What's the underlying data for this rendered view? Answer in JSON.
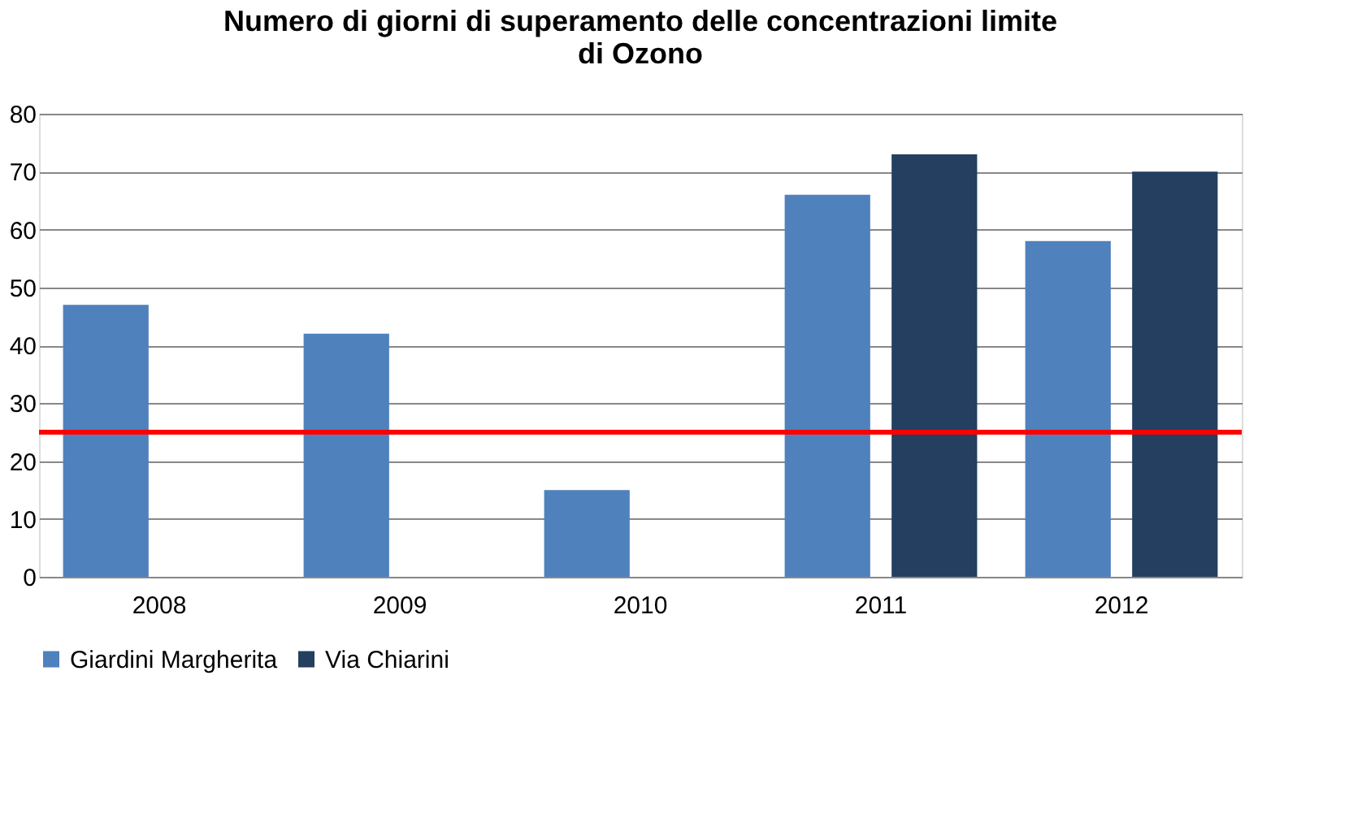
{
  "chart_data": {
    "type": "bar",
    "title": "Numero di giorni di superamento delle concentrazioni limite di Ozono",
    "categories": [
      "2008",
      "2009",
      "2010",
      "2011",
      "2012"
    ],
    "series": [
      {
        "name": "Giardini Margherita",
        "color": "#4f81bd",
        "values": [
          47,
          42,
          15,
          66,
          58
        ]
      },
      {
        "name": "Via Chiarini",
        "color": "#243f60",
        "values": [
          null,
          null,
          null,
          73,
          70
        ]
      }
    ],
    "ylim": [
      0,
      80
    ],
    "yticks": [
      0,
      10,
      20,
      30,
      40,
      50,
      60,
      70,
      80
    ],
    "grid": "y",
    "legend": "bottom",
    "ref_lines": [
      {
        "axis": "y",
        "value": 25,
        "color": "#ff0000"
      }
    ]
  }
}
